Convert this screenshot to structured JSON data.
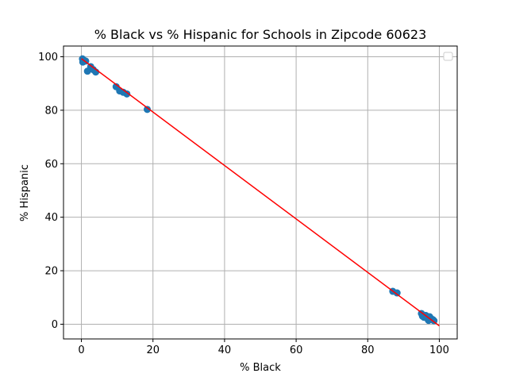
{
  "chart_data": {
    "type": "scatter",
    "title": "% Black vs % Hispanic for Schools in Zipcode 60623",
    "xlabel": "% Black",
    "ylabel": "% Hispanic",
    "xlim": [
      -5,
      105
    ],
    "ylim": [
      -5.5,
      104
    ],
    "xticks": [
      0,
      20,
      40,
      60,
      80,
      100
    ],
    "yticks": [
      0,
      20,
      40,
      60,
      80,
      100
    ],
    "grid": true,
    "legend": {
      "placement": "top-right",
      "entries": []
    },
    "series": [
      {
        "kind": "scatter",
        "color": "#1f77b4",
        "points": [
          [
            0.3,
            99.2
          ],
          [
            0.4,
            98.0
          ],
          [
            0.8,
            98.6
          ],
          [
            1.2,
            98.4
          ],
          [
            1.7,
            94.6
          ],
          [
            2.6,
            96.3
          ],
          [
            3.3,
            95.2
          ],
          [
            4.0,
            94.3
          ],
          [
            9.7,
            88.8
          ],
          [
            10.7,
            87.2
          ],
          [
            11.7,
            86.7
          ],
          [
            12.7,
            86.1
          ],
          [
            18.4,
            80.3
          ],
          [
            87.0,
            12.3
          ],
          [
            88.2,
            11.7
          ],
          [
            95.0,
            4.0
          ],
          [
            95.3,
            3.0
          ],
          [
            95.7,
            2.6
          ],
          [
            96.2,
            3.3
          ],
          [
            96.6,
            2.2
          ],
          [
            97.0,
            1.4
          ],
          [
            97.3,
            2.8
          ],
          [
            97.8,
            2.0
          ],
          [
            98.2,
            1.7
          ],
          [
            98.5,
            1.3
          ]
        ]
      },
      {
        "kind": "line",
        "color": "#ff0000",
        "x": [
          0,
          100
        ],
        "y": [
          99.3,
          -0.6
        ]
      }
    ]
  }
}
